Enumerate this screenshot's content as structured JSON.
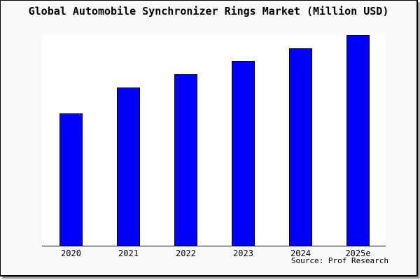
{
  "title": "Global Automobile Synchronizer Rings Market (Million USD)",
  "source": "Source: Prof Research",
  "colors": {
    "bar_fill": "#0000ff",
    "bar_border": "#000000",
    "plot_background": "#ffffff",
    "frame_background": "#f9f9f9",
    "axis_line": "#000000",
    "text": "#000000"
  },
  "chart_data": {
    "type": "bar",
    "title": "Global Automobile Synchronizer Rings Market (Million USD)",
    "categories": [
      "2020",
      "2021",
      "2022",
      "2023",
      "2024",
      "2025e"
    ],
    "values": [
      189,
      226,
      245,
      264,
      282,
      301
    ],
    "values_note": "No y-axis scale is shown in the image; values are bar heights in pixels relative to the x-axis baseline (steady year-over-year growth, 2025e tallest).",
    "xlabel": "",
    "ylabel": "",
    "grid": false,
    "legend": "none",
    "y_axis_ticks": "none",
    "annotations": [
      "Source: Prof Research"
    ]
  }
}
